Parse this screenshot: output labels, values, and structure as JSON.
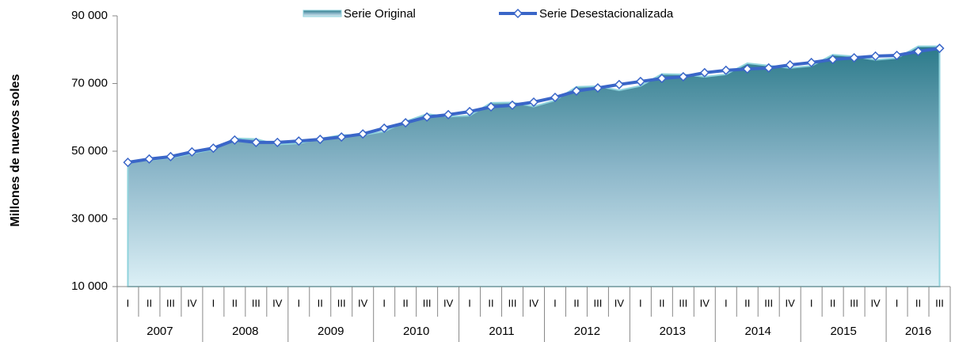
{
  "chart_data": {
    "type": "area_line",
    "y_label": "Millones de nuevos soles",
    "categories": [
      "I",
      "II",
      "III",
      "IV",
      "I",
      "II",
      "III",
      "IV",
      "I",
      "II",
      "III",
      "IV",
      "I",
      "II",
      "III",
      "IV",
      "I",
      "II",
      "III",
      "IV",
      "I",
      "II",
      "III",
      "IV",
      "I",
      "II",
      "III",
      "IV",
      "I",
      "II",
      "III",
      "IV",
      "I",
      "II",
      "III",
      "IV",
      "I",
      "II",
      "III"
    ],
    "years": [
      "2007",
      "2008",
      "2009",
      "2010",
      "2011",
      "2012",
      "2013",
      "2014",
      "2015",
      "2016"
    ],
    "series": [
      {
        "name": "Serie Original",
        "kind": "area",
        "color": "#8fd3dc",
        "values": [
          47000,
          47400,
          48000,
          49300,
          50500,
          53800,
          53600,
          52000,
          52300,
          53700,
          54800,
          54800,
          55800,
          58800,
          61000,
          60200,
          60500,
          64300,
          64400,
          63200,
          65000,
          69000,
          69200,
          68000,
          69300,
          72800,
          72700,
          72000,
          72700,
          76000,
          75300,
          74600,
          75200,
          78500,
          78000,
          77000,
          77500,
          81000,
          81000
        ]
      },
      {
        "name": "Serie Desestacionalizada",
        "kind": "line",
        "color": "#3a66c8",
        "values": [
          46700,
          47700,
          48400,
          49800,
          50900,
          53300,
          52600,
          52600,
          53000,
          53500,
          54200,
          55100,
          56800,
          58400,
          60100,
          60800,
          61700,
          63100,
          63600,
          64500,
          65900,
          67800,
          68700,
          69700,
          70600,
          71500,
          72000,
          73200,
          73900,
          74300,
          74600,
          75500,
          76200,
          77100,
          77600,
          78100,
          78300,
          79500,
          80400
        ]
      }
    ],
    "ylim": [
      10000,
      90000
    ],
    "yticks": [
      {
        "value": 10000,
        "label": "10 000"
      },
      {
        "value": 30000,
        "label": "30 000"
      },
      {
        "value": 50000,
        "label": "50 000"
      },
      {
        "value": 70000,
        "label": "70 000"
      },
      {
        "value": 90000,
        "label": "90 000"
      }
    ],
    "legend": "top"
  }
}
